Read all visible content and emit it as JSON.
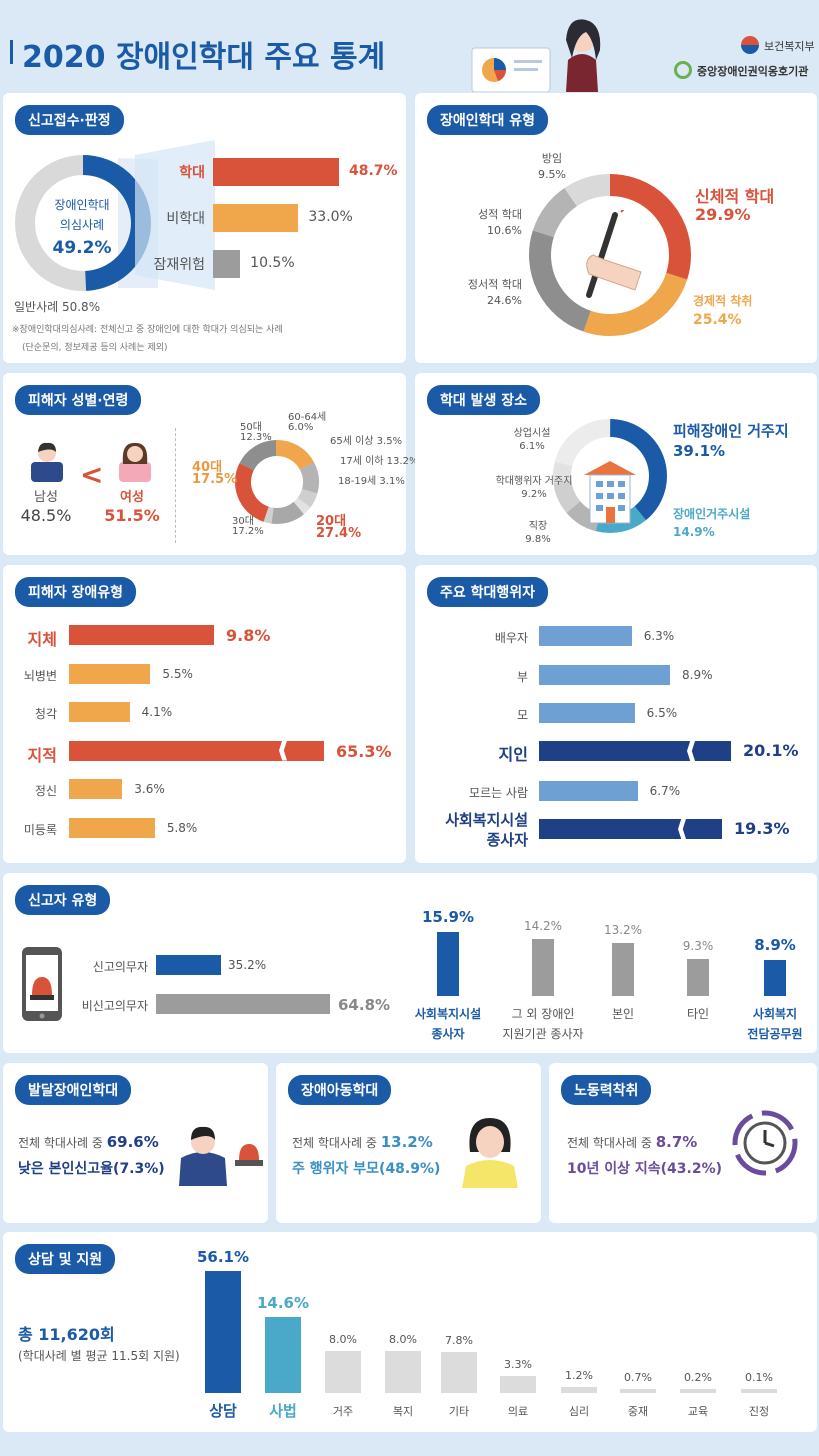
{
  "header": {
    "title": "2020 장애인학대 주요 통계",
    "org1": "보건복지부",
    "org2": "중앙장애인권익옹호기관"
  },
  "reports": {
    "label": "신고접수·판정",
    "donut_center": [
      "장애인학대",
      "의심사례",
      "49.2%"
    ],
    "general": "일반사례 50.8%",
    "bars": [
      {
        "label": "학대",
        "value": 48.7,
        "text": "48.7%"
      },
      {
        "label": "비학대",
        "value": 33.0,
        "text": "33.0%"
      },
      {
        "label": "잠재위험",
        "value": 10.5,
        "text": "10.5%"
      }
    ],
    "note1": "※장애인학대의심사례: 전체신고 중 장애인에 대한 학대가 의심되는 사례",
    "note2": "(단순문의, 정보제공 등의 사례는 제외)"
  },
  "types": {
    "label": "장애인학대 유형",
    "items": [
      {
        "name": "신체적 학대",
        "value": 29.9,
        "text": "29.9%"
      },
      {
        "name": "경제적 착취",
        "value": 25.4,
        "text": "25.4%"
      },
      {
        "name": "정서적 학대",
        "value": 24.6,
        "text": "24.6%"
      },
      {
        "name": "성적 학대",
        "value": 10.6,
        "text": "10.6%"
      },
      {
        "name": "방임",
        "value": 9.5,
        "text": "9.5%"
      }
    ]
  },
  "victims": {
    "label": "피해자 성별·연령",
    "male": "남성",
    "male_pct": "48.5%",
    "female": "여성",
    "female_pct": "51.5%",
    "lt": "<",
    "ages": [
      {
        "name": "20대",
        "text": "27.4%",
        "value": 27.4
      },
      {
        "name": "30대",
        "text": "17.2%",
        "value": 17.2
      },
      {
        "name": "40대",
        "text": "17.5%",
        "value": 17.5
      },
      {
        "name": "50대",
        "text": "12.3%",
        "value": 12.3
      },
      {
        "name": "60-64세",
        "text": "6.0%",
        "value": 6.0
      },
      {
        "name": "65세 이상",
        "text": "3.5%",
        "value": 3.5
      },
      {
        "name": "17세 이하",
        "text": "13.2%",
        "value": 13.2
      },
      {
        "name": "18-19세",
        "text": "3.1%",
        "value": 3.1
      }
    ]
  },
  "places": {
    "label": "학대 발생 장소",
    "items": [
      {
        "name": "피해장애인 거주지",
        "text": "39.1%",
        "value": 39.1
      },
      {
        "name": "장애인거주시설",
        "text": "14.9%",
        "value": 14.9
      },
      {
        "name": "직장",
        "text": "9.8%",
        "value": 9.8
      },
      {
        "name": "학대행위자 거주지",
        "text": "9.2%",
        "value": 9.2
      },
      {
        "name": "상업시설",
        "text": "6.1%",
        "value": 6.1
      }
    ]
  },
  "disability": {
    "label": "피해자 장애유형",
    "items": [
      {
        "name": "지체",
        "value": 9.8,
        "text": "9.8%"
      },
      {
        "name": "뇌병변",
        "value": 5.5,
        "text": "5.5%"
      },
      {
        "name": "청각",
        "value": 4.1,
        "text": "4.1%"
      },
      {
        "name": "지적",
        "value": 65.3,
        "text": "65.3%"
      },
      {
        "name": "정신",
        "value": 3.6,
        "text": "3.6%"
      },
      {
        "name": "미등록",
        "value": 5.8,
        "text": "5.8%"
      }
    ]
  },
  "perpetrators": {
    "label": "주요 학대행위자",
    "items": [
      {
        "name": "배우자",
        "value": 6.3,
        "text": "6.3%"
      },
      {
        "name": "부",
        "value": 8.9,
        "text": "8.9%"
      },
      {
        "name": "모",
        "value": 6.5,
        "text": "6.5%"
      },
      {
        "name": "지인",
        "value": 20.1,
        "text": "20.1%"
      },
      {
        "name": "모르는 사람",
        "value": 6.7,
        "text": "6.7%"
      },
      {
        "name": "사회복지시설",
        "name2": "종사자",
        "value": 19.3,
        "text": "19.3%"
      }
    ]
  },
  "reporters": {
    "label": "신고자 유형",
    "mandatory": "신고의무자",
    "mandatory_pct": "35.2%",
    "non": "비신고의무자",
    "non_pct": "64.8%",
    "cols": [
      {
        "l1": "사회복지시설",
        "l2": "종사자",
        "value": 15.9,
        "text": "15.9%"
      },
      {
        "l1": "그 외 장애인",
        "l2": "지원기관 종사자",
        "value": 14.2,
        "text": "14.2%"
      },
      {
        "l1": "본인",
        "l2": "",
        "value": 13.2,
        "text": "13.2%"
      },
      {
        "l1": "타인",
        "l2": "",
        "value": 9.3,
        "text": "9.3%"
      },
      {
        "l1": "사회복지",
        "l2": "전담공무원",
        "value": 8.9,
        "text": "8.9%"
      }
    ]
  },
  "dev": {
    "label": "발달장애인학대",
    "l1a": "전체 학대사례 중 ",
    "l1b": "69.6%",
    "l2a": "낮은 본인신고율(",
    "l2b": "7.3%",
    ")": ")"
  },
  "child": {
    "label": "장애아동학대",
    "l1a": "전체 학대사례 중 ",
    "l1b": "13.2%",
    "l2a": "주 행위자 부모(",
    "l2b": "48.9%"
  },
  "labor": {
    "label": "노동력착취",
    "l1a": "전체 학대사례 중 ",
    "l1b": "8.7%",
    "l2a": "10년 이상 지속(",
    "l2b": "43.2%"
  },
  "support": {
    "label": "상담 및 지원",
    "total": "총 11,620회",
    "sub": "(학대사례 별 평균 11.5회 지원)",
    "cols": [
      {
        "name": "상담",
        "value": 56.1,
        "text": "56.1%"
      },
      {
        "name": "사법",
        "value": 14.6,
        "text": "14.6%"
      },
      {
        "name": "거주",
        "value": 8.0,
        "text": "8.0%"
      },
      {
        "name": "복지",
        "value": 8.0,
        "text": "8.0%"
      },
      {
        "name": "기타",
        "value": 7.8,
        "text": "7.8%"
      },
      {
        "name": "의료",
        "value": 3.3,
        "text": "3.3%"
      },
      {
        "name": "심리",
        "value": 1.2,
        "text": "1.2%"
      },
      {
        "name": "중재",
        "value": 0.7,
        "text": "0.7%"
      },
      {
        "name": "교육",
        "value": 0.2,
        "text": "0.2%"
      },
      {
        "name": "진정",
        "value": 0.1,
        "text": "0.1%"
      }
    ]
  },
  "colors": {
    "blue": "#1a5aa6",
    "red": "#d9533b",
    "orange": "#f0a64a",
    "gray": "#9c9c9c",
    "lightblue": "#6fa0d4",
    "navy": "#1f3f86",
    "teal": "#4aa8c8"
  },
  "chart_data": [
    {
      "type": "pie",
      "title": "신고접수·판정",
      "labels": [
        "장애인학대 의심사례",
        "일반사례"
      ],
      "values": [
        49.2,
        50.8
      ]
    },
    {
      "type": "bar",
      "title": "신고접수·판정",
      "categories": [
        "학대",
        "비학대",
        "잠재위험"
      ],
      "values": [
        48.7,
        33.0,
        10.5
      ]
    },
    {
      "type": "pie",
      "title": "장애인학대 유형",
      "labels": [
        "신체적 학대",
        "경제적 착취",
        "정서적 학대",
        "성적 학대",
        "방임"
      ],
      "values": [
        29.9,
        25.4,
        24.6,
        10.6,
        9.5
      ]
    },
    {
      "type": "pie",
      "title": "피해자 성별·연령",
      "labels": [
        "20대",
        "30대",
        "40대",
        "50대",
        "60-64세",
        "65세 이상",
        "17세 이하",
        "18-19세"
      ],
      "values": [
        27.4,
        17.2,
        17.5,
        12.3,
        6.0,
        3.5,
        13.2,
        3.1
      ]
    },
    {
      "type": "pie",
      "title": "학대 발생 장소",
      "labels": [
        "피해장애인 거주지",
        "장애인거주시설",
        "직장",
        "학대행위자 거주지",
        "상업시설"
      ],
      "values": [
        39.1,
        14.9,
        9.8,
        9.2,
        6.1
      ]
    },
    {
      "type": "bar",
      "title": "피해자 장애유형",
      "categories": [
        "지체",
        "뇌병변",
        "청각",
        "지적",
        "정신",
        "미등록"
      ],
      "values": [
        9.8,
        5.5,
        4.1,
        65.3,
        3.6,
        5.8
      ]
    },
    {
      "type": "bar",
      "title": "주요 학대행위자",
      "categories": [
        "배우자",
        "부",
        "모",
        "지인",
        "모르는 사람",
        "사회복지시설 종사자"
      ],
      "values": [
        6.3,
        8.9,
        6.5,
        20.1,
        6.7,
        19.3
      ]
    },
    {
      "type": "bar",
      "title": "신고자 유형",
      "categories": [
        "신고의무자",
        "비신고의무자"
      ],
      "values": [
        35.2,
        64.8
      ]
    },
    {
      "type": "bar",
      "title": "신고자 유형",
      "categories": [
        "사회복지시설 종사자",
        "그 외 장애인 지원기관 종사자",
        "본인",
        "타인",
        "사회복지 전담공무원"
      ],
      "values": [
        15.9,
        14.2,
        13.2,
        9.3,
        8.9
      ]
    },
    {
      "type": "bar",
      "title": "상담 및 지원",
      "categories": [
        "상담",
        "사법",
        "거주",
        "복지",
        "기타",
        "의료",
        "심리",
        "중재",
        "교육",
        "진정"
      ],
      "values": [
        56.1,
        14.6,
        8.0,
        8.0,
        7.8,
        3.3,
        1.2,
        0.7,
        0.2,
        0.1
      ]
    }
  ]
}
